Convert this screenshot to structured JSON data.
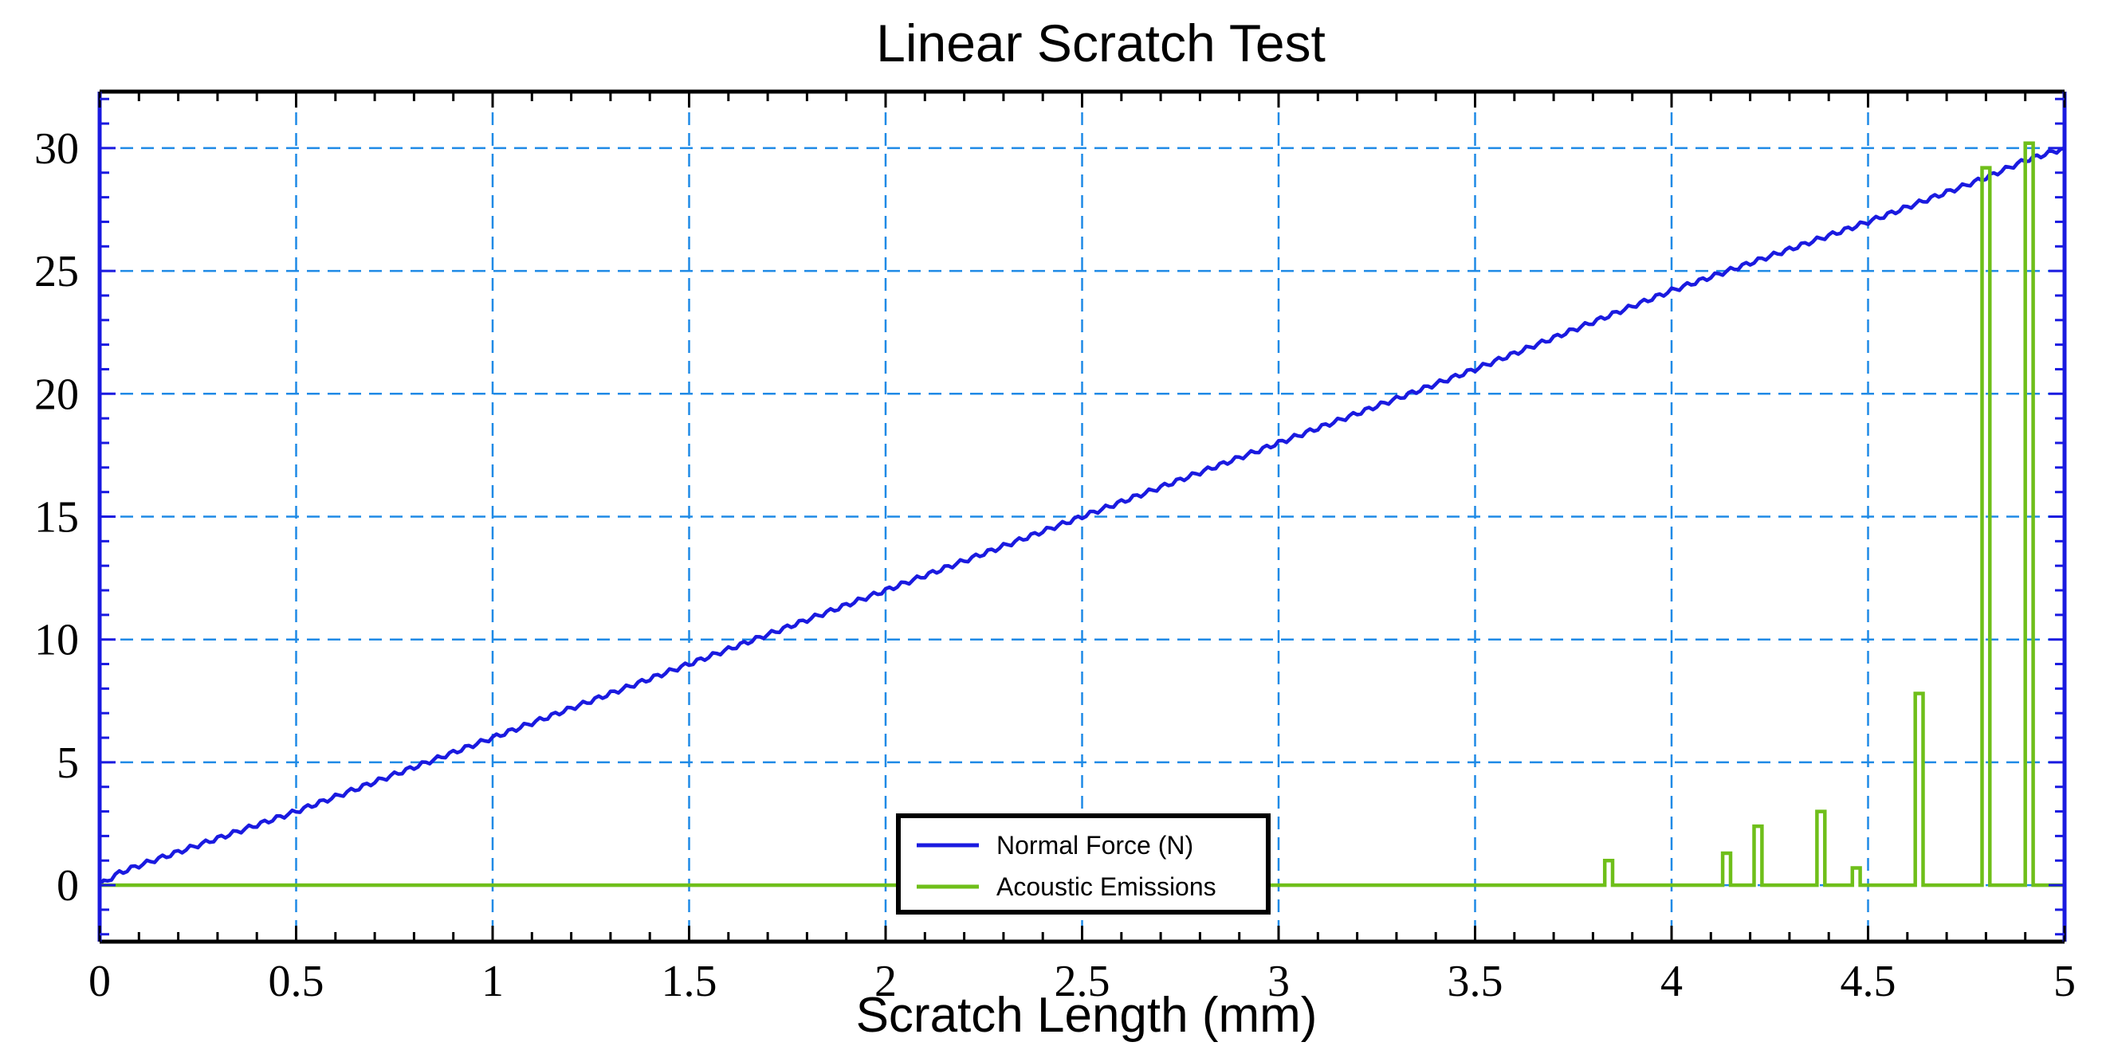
{
  "chart_data": {
    "type": "line",
    "title": "Linear Scratch Test",
    "xlabel": "Scratch Length (mm)",
    "ylabel": "",
    "xlim": [
      0,
      5
    ],
    "ylim": [
      -2.3,
      32.3
    ],
    "x_ticks": [
      {
        "value": 0,
        "label": "0"
      },
      {
        "value": 0.5,
        "label": "0.5"
      },
      {
        "value": 1,
        "label": "1"
      },
      {
        "value": 1.5,
        "label": "1.5"
      },
      {
        "value": 2,
        "label": "2"
      },
      {
        "value": 2.5,
        "label": "2.5"
      },
      {
        "value": 3,
        "label": "3"
      },
      {
        "value": 3.5,
        "label": "3.5"
      },
      {
        "value": 4,
        "label": "4"
      },
      {
        "value": 4.5,
        "label": "4.5"
      },
      {
        "value": 5,
        "label": "5"
      }
    ],
    "y_ticks": [
      {
        "value": 0,
        "label": "0"
      },
      {
        "value": 5,
        "label": "5"
      },
      {
        "value": 10,
        "label": "10"
      },
      {
        "value": 15,
        "label": "15"
      },
      {
        "value": 20,
        "label": "20"
      },
      {
        "value": 25,
        "label": "25"
      },
      {
        "value": 30,
        "label": "30"
      }
    ],
    "x_minor_step": 0.1,
    "y_minor_step": 1,
    "grid": true,
    "legend_position": "bottom-center",
    "series": [
      {
        "name": "Normal Force (N)",
        "color": "#1a1ae0",
        "style": "line",
        "x": [
          0,
          0.03,
          0.05,
          0.1,
          0.5,
          1.0,
          1.5,
          2.0,
          2.5,
          3.0,
          3.5,
          4.0,
          4.5,
          4.8,
          4.9,
          5.0
        ],
        "y": [
          0,
          0.3,
          0.5,
          0.8,
          3.0,
          6.0,
          9.0,
          12.0,
          15.0,
          18.0,
          21.0,
          24.2,
          27.0,
          28.8,
          29.5,
          30.0
        ]
      },
      {
        "name": "Acoustic Emissions",
        "color": "#6fbf1a",
        "style": "pulses",
        "baseline": 0,
        "pulses": [
          {
            "start": 3.83,
            "end": 3.85,
            "value": 1.0
          },
          {
            "start": 4.13,
            "end": 4.15,
            "value": 1.3
          },
          {
            "start": 4.21,
            "end": 4.23,
            "value": 2.4
          },
          {
            "start": 4.37,
            "end": 4.39,
            "value": 3.0
          },
          {
            "start": 4.46,
            "end": 4.48,
            "value": 0.7
          },
          {
            "start": 4.62,
            "end": 4.64,
            "value": 7.8
          },
          {
            "start": 4.79,
            "end": 4.81,
            "value": 29.2
          },
          {
            "start": 4.9,
            "end": 4.92,
            "value": 30.2
          }
        ]
      }
    ]
  },
  "colors": {
    "frame_left_right": "#1a1ae0",
    "frame_top_bottom": "#000000",
    "grid": "#1f8ae6",
    "background": "#ffffff"
  }
}
